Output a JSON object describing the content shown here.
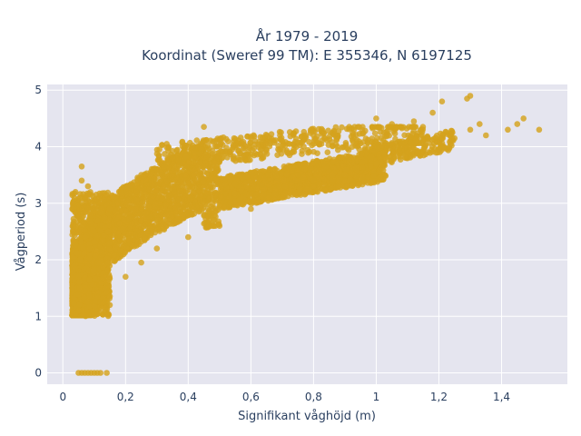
{
  "chart_data": {
    "type": "scatter",
    "title_line1": "År 1979 - 2019",
    "title_line2": "Koordinat (Sweref 99 TM): E 355346, N 6197125",
    "xlabel": "Signifikant våghöjd (m)",
    "ylabel": "Vågperiod (s)",
    "xlim": [
      -0.05,
      1.61
    ],
    "ylim": [
      -0.2,
      5.1
    ],
    "x_ticks": [
      0,
      0.2,
      0.4,
      0.6,
      0.8,
      1,
      1.2,
      1.4
    ],
    "x_tick_labels": [
      "0",
      "0,2",
      "0,4",
      "0,6",
      "0,8",
      "1",
      "1,2",
      "1,4"
    ],
    "y_ticks": [
      0,
      1,
      2,
      3,
      4,
      5
    ],
    "y_tick_labels": [
      "0",
      "1",
      "2",
      "3",
      "4",
      "5"
    ],
    "grid": true,
    "legend": "none",
    "marker_color": "#d4a21d",
    "background_color": "#e5e5ef",
    "approx_relationship": "T ≈ 1.05 + 3.5·sqrt(Hs) for Hs < 0.5, flattening to ~4.3 at Hs = 1.5",
    "series": [
      {
        "points_sample": [
          [
            0.05,
            0
          ],
          [
            0.06,
            0
          ],
          [
            0.07,
            0
          ],
          [
            0.08,
            0
          ],
          [
            0.09,
            0
          ],
          [
            0.1,
            0
          ],
          [
            0.11,
            0
          ],
          [
            0.12,
            0
          ],
          [
            0.14,
            0
          ],
          [
            0.03,
            1.5
          ],
          [
            0.03,
            2.9
          ],
          [
            0.04,
            3.2
          ],
          [
            0.06,
            3.65
          ],
          [
            0.06,
            3.4
          ],
          [
            0.08,
            3.3
          ],
          [
            0.05,
            1.1
          ],
          [
            0.1,
            1.05
          ],
          [
            0.15,
            1.2
          ],
          [
            0.2,
            1.7
          ],
          [
            0.25,
            1.95
          ],
          [
            0.3,
            2.2
          ],
          [
            0.1,
            2.5
          ],
          [
            0.15,
            2.9
          ],
          [
            0.2,
            3.2
          ],
          [
            0.25,
            3.5
          ],
          [
            0.3,
            3.6
          ],
          [
            0.35,
            3.8
          ],
          [
            0.4,
            2.4
          ],
          [
            0.5,
            2.6
          ],
          [
            0.6,
            2.9
          ],
          [
            0.7,
            3.1
          ],
          [
            0.8,
            3.3
          ],
          [
            0.9,
            3.5
          ],
          [
            0.4,
            4.0
          ],
          [
            0.45,
            4.35
          ],
          [
            0.5,
            4.0
          ],
          [
            0.6,
            4.15
          ],
          [
            0.7,
            4.1
          ],
          [
            0.8,
            4.2
          ],
          [
            1.0,
            3.7
          ],
          [
            1.1,
            3.9
          ],
          [
            1.2,
            3.95
          ],
          [
            1.3,
            4.3
          ],
          [
            1.33,
            4.4
          ],
          [
            1.21,
            4.8
          ],
          [
            1.0,
            4.5
          ],
          [
            1.05,
            4.4
          ],
          [
            1.12,
            4.45
          ],
          [
            1.3,
            4.9
          ],
          [
            1.29,
            4.85
          ],
          [
            1.42,
            4.3
          ],
          [
            1.45,
            4.4
          ],
          [
            1.47,
            4.5
          ],
          [
            1.52,
            4.3
          ],
          [
            1.35,
            4.2
          ],
          [
            1.25,
            4.15
          ],
          [
            1.18,
            4.6
          ]
        ]
      }
    ]
  }
}
